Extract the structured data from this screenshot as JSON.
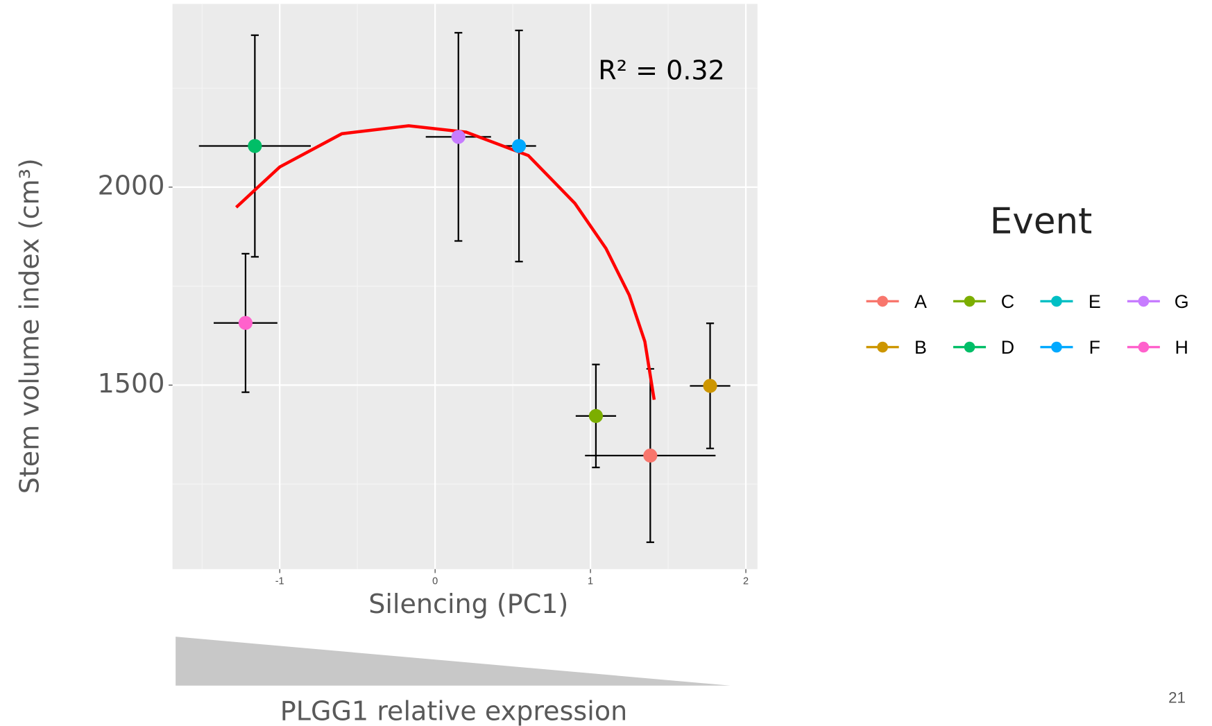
{
  "chart_data": {
    "type": "scatter",
    "xlabel": "Silencing (PC1)",
    "ylabel": "Stem volume index (cm³)",
    "annotation": "R² = 0.32",
    "legend_title": "Event",
    "xlim": [
      -1.69,
      2.075
    ],
    "ylim": [
      1035,
      2463
    ],
    "xticks": [
      -1,
      0,
      1,
      2
    ],
    "yticks": [
      1500,
      2000
    ],
    "xminor": [
      -1.5,
      -0.5,
      0.5,
      1.5
    ],
    "yminor": [
      1250,
      1750,
      2250
    ],
    "grid": true,
    "series": [
      {
        "name": "A",
        "color": "#F8766D",
        "x": [
          1.385
        ],
        "values": [
          1322
        ],
        "xerr": [
          0.42
        ],
        "yerr": [
          219
        ]
      },
      {
        "name": "B",
        "color": "#CD9600",
        "x": [
          1.77
        ],
        "values": [
          1498
        ],
        "xerr": [
          0.13
        ],
        "yerr": [
          158
        ]
      },
      {
        "name": "C",
        "color": "#7CAE00",
        "x": [
          1.035
        ],
        "values": [
          1422
        ],
        "xerr": [
          0.13
        ],
        "yerr": [
          130
        ]
      },
      {
        "name": "D",
        "color": "#00BE67",
        "x": [
          -1.16
        ],
        "values": [
          2104
        ],
        "xerr": [
          0.36
        ],
        "yerr": [
          280
        ]
      },
      {
        "name": "E",
        "color": "#00BFC4",
        "x": [],
        "values": [],
        "xerr": [],
        "yerr": []
      },
      {
        "name": "F",
        "color": "#00A9FF",
        "x": [
          0.54
        ],
        "values": [
          2104
        ],
        "xerr": [
          0.11
        ],
        "yerr": [
          292
        ]
      },
      {
        "name": "G",
        "color": "#C77CFF",
        "x": [
          0.15
        ],
        "values": [
          2127
        ],
        "xerr": [
          0.21
        ],
        "yerr": [
          263
        ]
      },
      {
        "name": "H",
        "color": "#FF61CC",
        "x": [
          -1.22
        ],
        "values": [
          1657
        ],
        "xerr": [
          0.205
        ],
        "yerr": [
          175
        ]
      }
    ],
    "curve": {
      "color": "#ff0000",
      "x": [
        -1.28,
        -1.0,
        -0.6,
        -0.17,
        0.2,
        0.6,
        0.9,
        1.1,
        1.25,
        1.35,
        1.41
      ],
      "y": [
        1949,
        2051,
        2135,
        2155,
        2139,
        2080,
        1959,
        1845,
        1727,
        1610,
        1463
      ]
    },
    "footer": "PLGG1 relative expression",
    "page_number": "21"
  }
}
